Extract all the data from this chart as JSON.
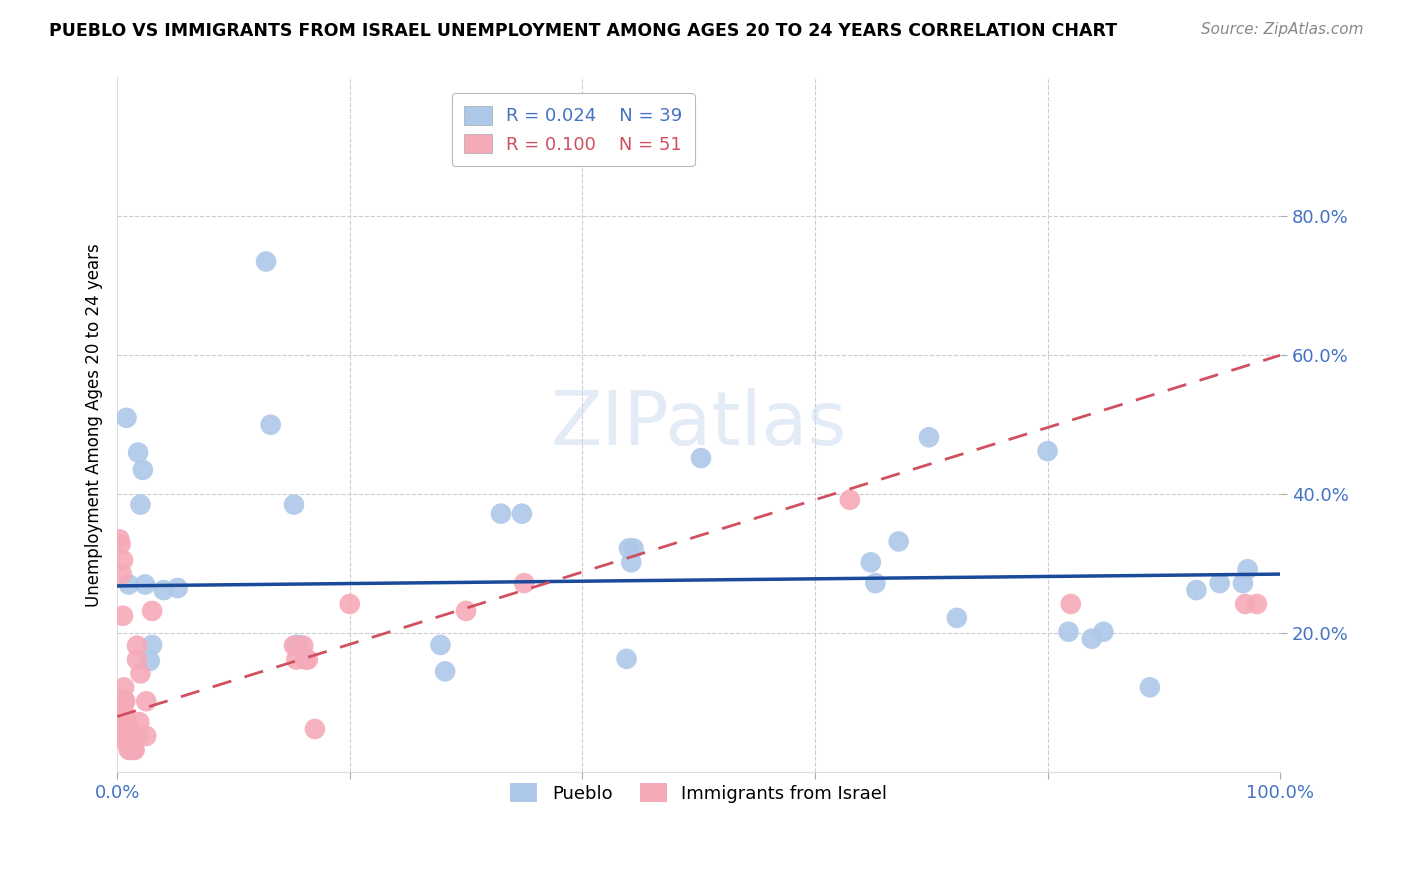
{
  "title": "PUEBLO VS IMMIGRANTS FROM ISRAEL UNEMPLOYMENT AMONG AGES 20 TO 24 YEARS CORRELATION CHART",
  "source": "Source: ZipAtlas.com",
  "ylabel": "Unemployment Among Ages 20 to 24 years",
  "watermark": "ZIPatlas",
  "legend_pueblo_R": "0.024",
  "legend_pueblo_N": "39",
  "legend_israel_R": "0.100",
  "legend_israel_N": "51",
  "pueblo_color": "#adc8e8",
  "israel_color": "#f5aab8",
  "pueblo_line_color": "#1a4a9a",
  "israel_line_color": "#d05060",
  "pueblo_line": [
    0.0,
    0.268,
    1.0,
    0.285
  ],
  "israel_line": [
    0.0,
    0.08,
    1.0,
    0.6
  ],
  "pueblo_points": [
    [
      0.008,
      0.51
    ],
    [
      0.01,
      0.27
    ],
    [
      0.018,
      0.46
    ],
    [
      0.02,
      0.385
    ],
    [
      0.022,
      0.435
    ],
    [
      0.024,
      0.27
    ],
    [
      0.028,
      0.16
    ],
    [
      0.03,
      0.183
    ],
    [
      0.04,
      0.262
    ],
    [
      0.128,
      0.735
    ],
    [
      0.132,
      0.5
    ],
    [
      0.052,
      0.265
    ],
    [
      0.152,
      0.385
    ],
    [
      0.154,
      0.183
    ],
    [
      0.156,
      0.183
    ],
    [
      0.162,
      0.163
    ],
    [
      0.278,
      0.183
    ],
    [
      0.282,
      0.145
    ],
    [
      0.33,
      0.372
    ],
    [
      0.348,
      0.372
    ],
    [
      0.438,
      0.163
    ],
    [
      0.44,
      0.322
    ],
    [
      0.442,
      0.302
    ],
    [
      0.444,
      0.322
    ],
    [
      0.502,
      0.452
    ],
    [
      0.648,
      0.302
    ],
    [
      0.652,
      0.272
    ],
    [
      0.672,
      0.332
    ],
    [
      0.698,
      0.482
    ],
    [
      0.722,
      0.222
    ],
    [
      0.8,
      0.462
    ],
    [
      0.818,
      0.202
    ],
    [
      0.838,
      0.192
    ],
    [
      0.848,
      0.202
    ],
    [
      0.888,
      0.122
    ],
    [
      0.928,
      0.262
    ],
    [
      0.948,
      0.272
    ],
    [
      0.968,
      0.272
    ],
    [
      0.972,
      0.292
    ]
  ],
  "israel_points": [
    [
      0.002,
      0.335
    ],
    [
      0.003,
      0.328
    ],
    [
      0.004,
      0.285
    ],
    [
      0.004,
      0.105
    ],
    [
      0.005,
      0.305
    ],
    [
      0.005,
      0.225
    ],
    [
      0.005,
      0.105
    ],
    [
      0.006,
      0.082
    ],
    [
      0.006,
      0.102
    ],
    [
      0.006,
      0.122
    ],
    [
      0.007,
      0.062
    ],
    [
      0.007,
      0.072
    ],
    [
      0.007,
      0.082
    ],
    [
      0.007,
      0.102
    ],
    [
      0.008,
      0.042
    ],
    [
      0.008,
      0.052
    ],
    [
      0.008,
      0.062
    ],
    [
      0.008,
      0.072
    ],
    [
      0.009,
      0.042
    ],
    [
      0.009,
      0.052
    ],
    [
      0.01,
      0.032
    ],
    [
      0.01,
      0.042
    ],
    [
      0.01,
      0.062
    ],
    [
      0.011,
      0.032
    ],
    [
      0.011,
      0.042
    ],
    [
      0.012,
      0.042
    ],
    [
      0.013,
      0.032
    ],
    [
      0.013,
      0.042
    ],
    [
      0.014,
      0.032
    ],
    [
      0.015,
      0.032
    ],
    [
      0.017,
      0.182
    ],
    [
      0.017,
      0.162
    ],
    [
      0.018,
      0.052
    ],
    [
      0.019,
      0.072
    ],
    [
      0.025,
      0.102
    ],
    [
      0.025,
      0.052
    ],
    [
      0.03,
      0.232
    ],
    [
      0.152,
      0.182
    ],
    [
      0.154,
      0.162
    ],
    [
      0.16,
      0.182
    ],
    [
      0.162,
      0.162
    ],
    [
      0.164,
      0.162
    ],
    [
      0.17,
      0.062
    ],
    [
      0.2,
      0.242
    ],
    [
      0.3,
      0.232
    ],
    [
      0.35,
      0.272
    ],
    [
      0.63,
      0.392
    ],
    [
      0.82,
      0.242
    ],
    [
      0.97,
      0.242
    ],
    [
      0.98,
      0.242
    ],
    [
      0.02,
      0.142
    ]
  ]
}
